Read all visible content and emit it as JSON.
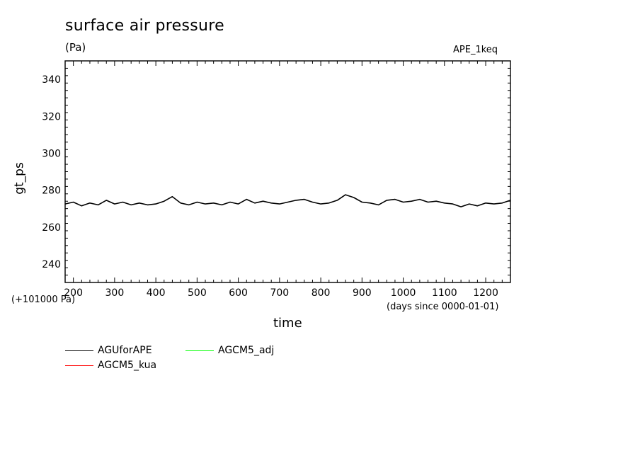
{
  "chart_data": {
    "type": "line",
    "title": "surface air pressure",
    "units": "(Pa)",
    "experiment": "APE_1keq",
    "ylabel": "gt_ps",
    "xlabel": "time",
    "y_offset_label": "(+101000 Pa)",
    "x_units_label": "(days since 0000-01-01)",
    "xlim": [
      180,
      1260
    ],
    "ylim": [
      230,
      350
    ],
    "x_ticks": [
      200,
      300,
      400,
      500,
      600,
      700,
      800,
      900,
      1000,
      1100,
      1200
    ],
    "y_ticks": [
      240,
      260,
      280,
      300,
      320,
      340
    ],
    "grid": false,
    "legend_position": "bottom-left",
    "series": [
      {
        "name": "AGUforAPE",
        "color": "#000000",
        "x": [
          180,
          200,
          220,
          240,
          260,
          280,
          300,
          320,
          340,
          360,
          380,
          400,
          420,
          440,
          460,
          480,
          500,
          520,
          540,
          560,
          580,
          600,
          620,
          640,
          660,
          680,
          700,
          720,
          740,
          760,
          780,
          800,
          820,
          840,
          860,
          880,
          900,
          920,
          940,
          960,
          980,
          1000,
          1020,
          1040,
          1060,
          1080,
          1100,
          1120,
          1140,
          1160,
          1180,
          1200,
          1220,
          1240,
          1260
        ],
        "values": [
          272.5,
          273.5,
          271.5,
          273,
          272,
          274.5,
          272.5,
          273.5,
          272,
          273,
          272,
          272.5,
          274,
          276.5,
          273,
          272,
          273.5,
          272.5,
          273,
          272,
          273.5,
          272.5,
          275,
          273,
          274,
          273,
          272.5,
          273.5,
          274.5,
          275,
          273.5,
          272.5,
          273,
          274.5,
          277.5,
          276,
          273.5,
          273,
          272,
          274.5,
          275,
          273.5,
          274,
          275,
          273.5,
          274,
          273,
          272.5,
          271,
          272.5,
          271.5,
          273,
          272.5,
          273,
          274.5
        ]
      },
      {
        "name": "AGCM5_kua",
        "color": "#ff0000",
        "x": [],
        "values": []
      },
      {
        "name": "AGCM5_adj",
        "color": "#00ff00",
        "x": [],
        "values": []
      }
    ]
  }
}
